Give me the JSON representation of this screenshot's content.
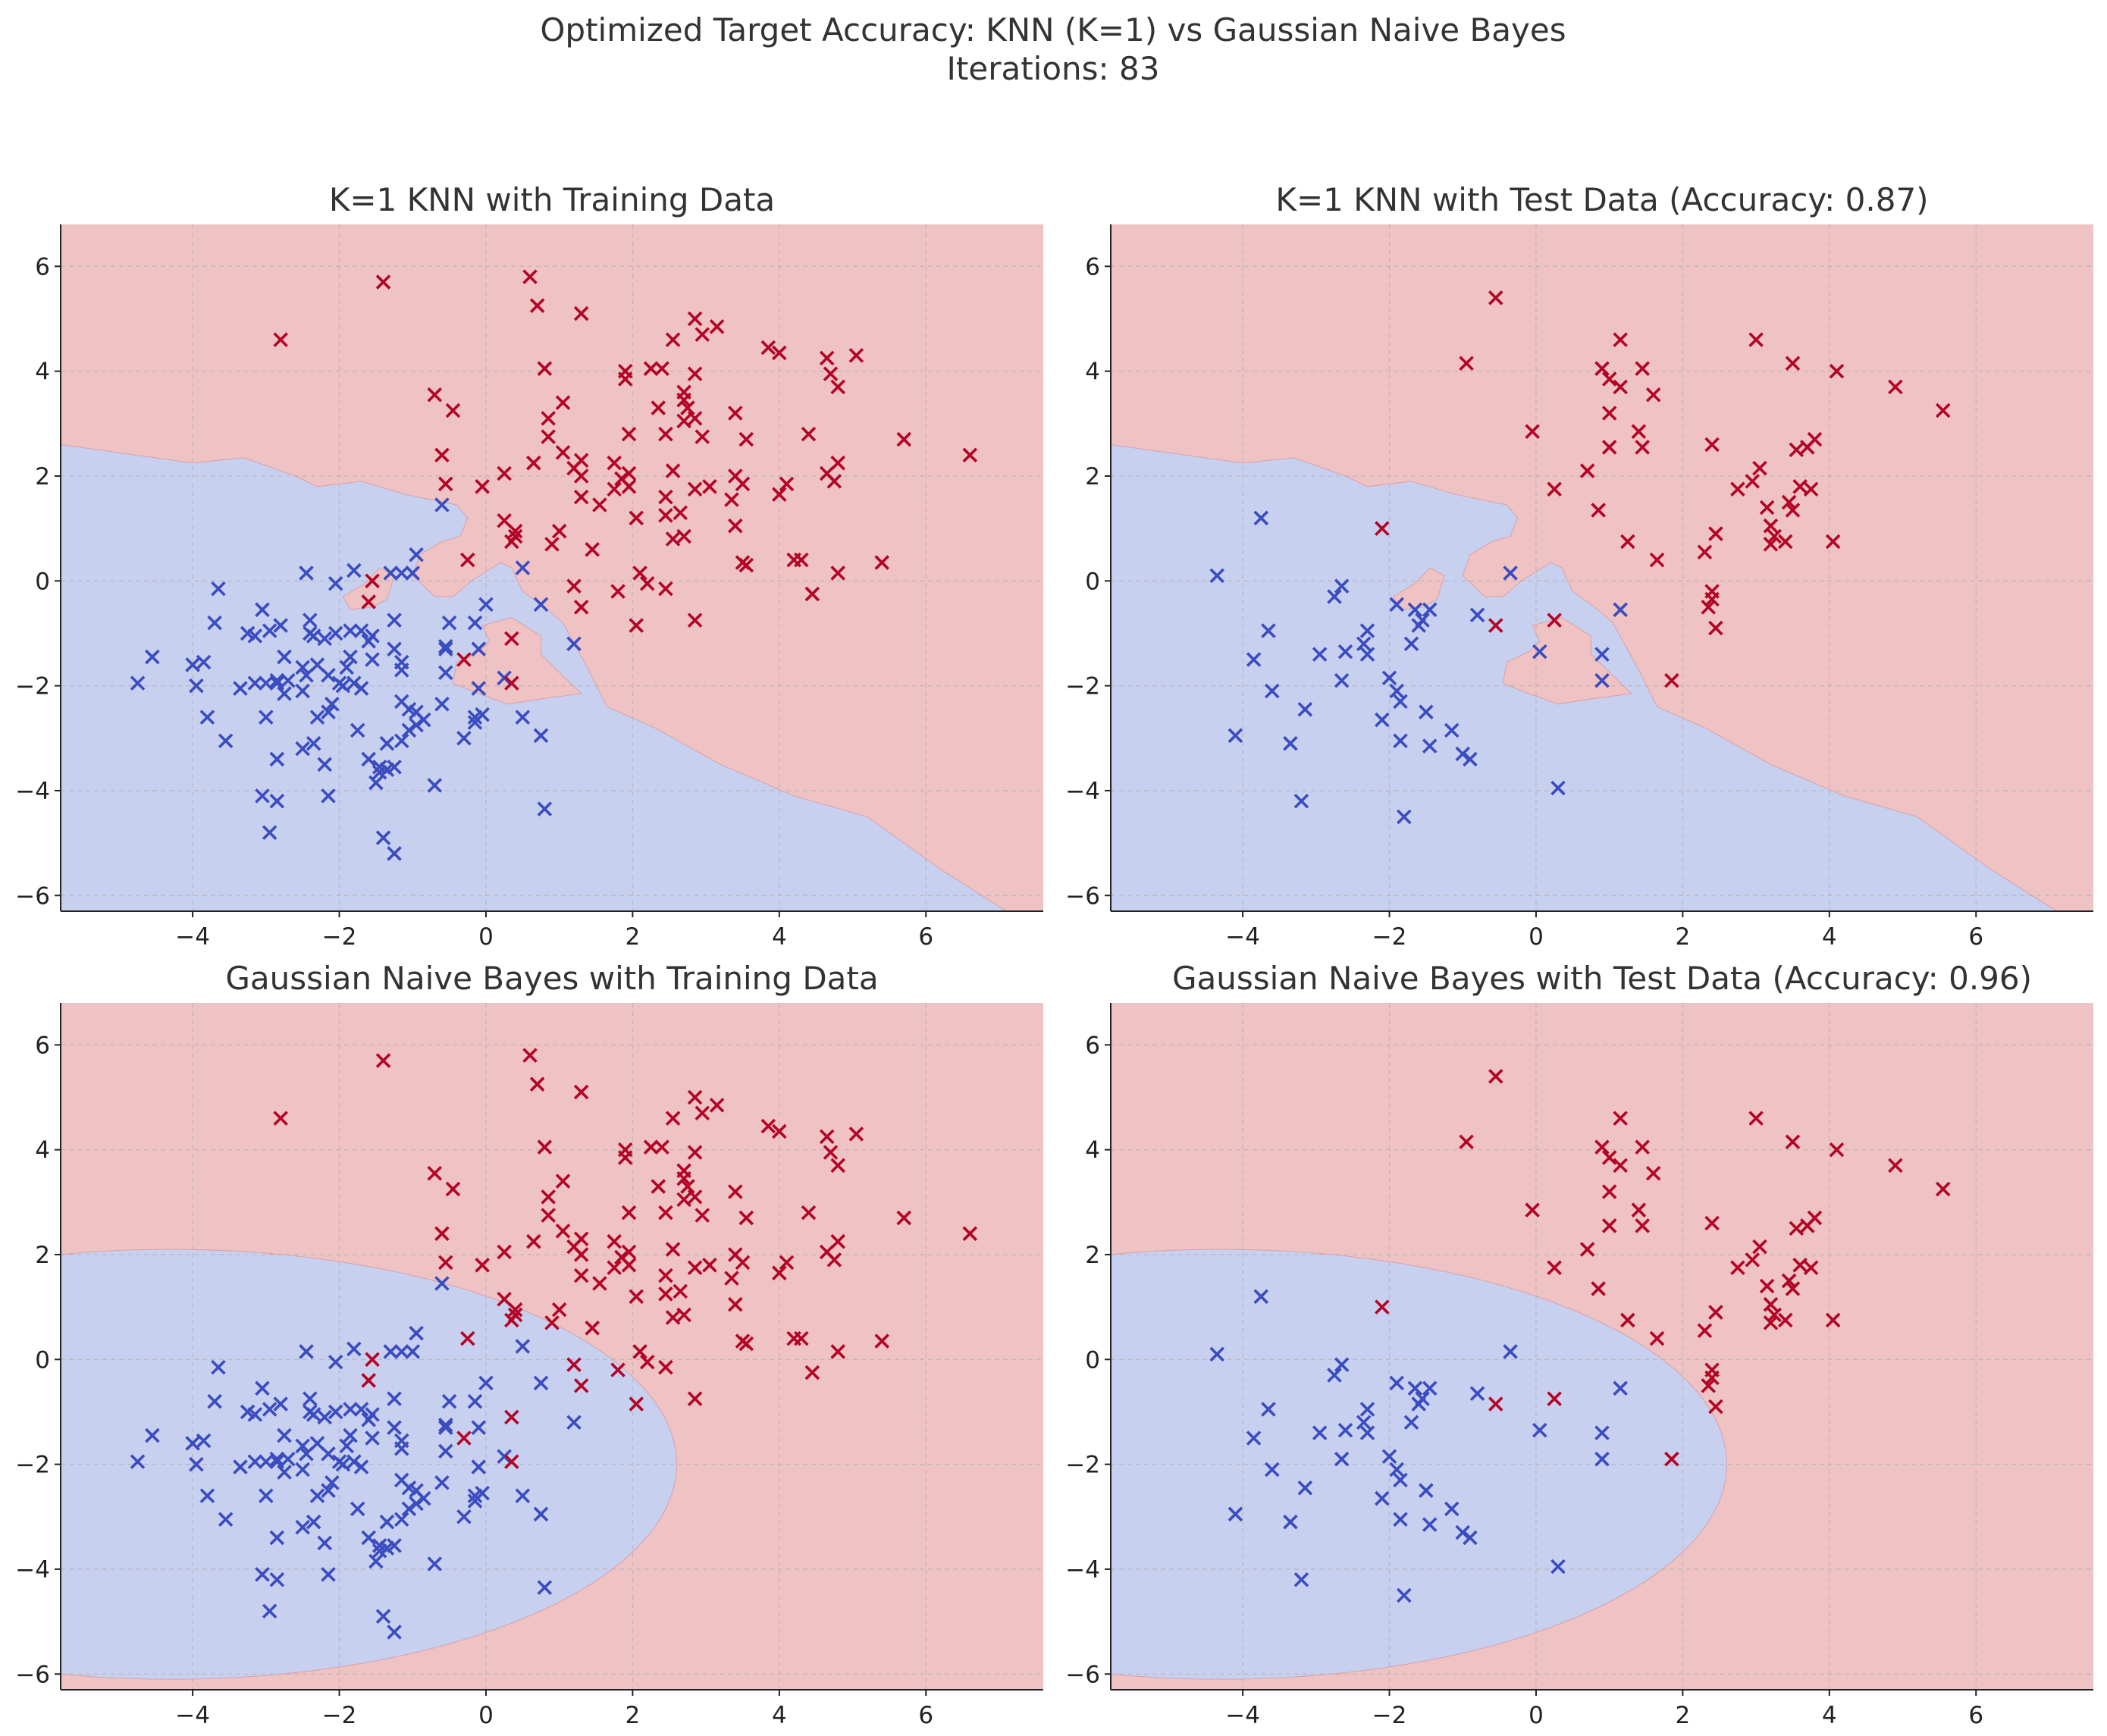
{
  "suptitle": {
    "line1": "Optimized Target Accuracy: KNN (K=1) vs Gaussian Naive Bayes",
    "line2": "Iterations: 83"
  },
  "colors": {
    "class0_region": "#c8d0f0",
    "class1_region": "#efc3c4",
    "class0_marker": "#3a4cc0",
    "class1_marker": "#b40426",
    "grid": "#b0b0b0"
  },
  "chart_data": [
    {
      "type": "scatter",
      "title": "K=1 KNN with Training Data",
      "xlim": [
        -5.8,
        7.6
      ],
      "ylim": [
        -6.3,
        6.8
      ],
      "xticks": [
        -4,
        -2,
        0,
        2,
        4,
        6
      ],
      "yticks": [
        -6,
        -4,
        -2,
        0,
        2,
        4,
        6
      ],
      "grid": true,
      "boundary_type": "knn",
      "dataset": "train"
    },
    {
      "type": "scatter",
      "title": "K=1 KNN with Test Data (Accuracy: 0.87)",
      "xlim": [
        -5.8,
        7.6
      ],
      "ylim": [
        -6.3,
        6.8
      ],
      "xticks": [
        -4,
        -2,
        0,
        2,
        4,
        6
      ],
      "yticks": [
        -6,
        -4,
        -2,
        0,
        2,
        4,
        6
      ],
      "grid": true,
      "boundary_type": "knn",
      "dataset": "test"
    },
    {
      "type": "scatter",
      "title": "Gaussian Naive Bayes with Training Data",
      "xlim": [
        -5.8,
        7.6
      ],
      "ylim": [
        -6.3,
        6.8
      ],
      "xticks": [
        -4,
        -2,
        0,
        2,
        4,
        6
      ],
      "yticks": [
        -6,
        -4,
        -2,
        0,
        2,
        4,
        6
      ],
      "grid": true,
      "boundary_type": "gnb",
      "dataset": "train"
    },
    {
      "type": "scatter",
      "title": "Gaussian Naive Bayes with Test Data (Accuracy: 0.96)",
      "xlim": [
        -5.8,
        7.6
      ],
      "ylim": [
        -6.3,
        6.8
      ],
      "xticks": [
        -4,
        -2,
        0,
        2,
        4,
        6
      ],
      "yticks": [
        -6,
        -4,
        -2,
        0,
        2,
        4,
        6
      ],
      "grid": true,
      "boundary_type": "gnb",
      "dataset": "test"
    }
  ],
  "boundaries": {
    "knn_main": [
      [
        -5.8,
        2.6
      ],
      [
        -4.0,
        2.25
      ],
      [
        -3.3,
        2.35
      ],
      [
        -2.6,
        2.0
      ],
      [
        -2.3,
        1.8
      ],
      [
        -1.7,
        1.9
      ],
      [
        -1.1,
        1.65
      ],
      [
        -0.4,
        1.45
      ],
      [
        -0.25,
        1.2
      ],
      [
        -0.35,
        0.85
      ],
      [
        -0.6,
        0.75
      ],
      [
        -0.9,
        0.5
      ],
      [
        -1.0,
        0.1
      ],
      [
        -0.7,
        -0.3
      ],
      [
        -0.45,
        -0.3
      ],
      [
        -0.2,
        0.0
      ],
      [
        0.2,
        0.35
      ],
      [
        0.35,
        0.25
      ],
      [
        0.5,
        -0.2
      ],
      [
        0.8,
        -0.5
      ],
      [
        1.05,
        -0.8
      ],
      [
        1.4,
        -1.7
      ],
      [
        1.65,
        -2.4
      ],
      [
        2.3,
        -2.8
      ],
      [
        3.2,
        -3.5
      ],
      [
        4.2,
        -4.1
      ],
      [
        5.2,
        -4.5
      ],
      [
        6.2,
        -5.5
      ],
      [
        7.1,
        -6.3
      ]
    ],
    "knn_islands": [
      [
        [
          -1.65,
          -0.05
        ],
        [
          -1.45,
          0.25
        ],
        [
          -1.25,
          0.1
        ],
        [
          -1.35,
          -0.35
        ],
        [
          -1.55,
          -0.5
        ],
        [
          -1.85,
          -0.55
        ],
        [
          -1.95,
          -0.3
        ]
      ],
      [
        [
          -0.05,
          -0.85
        ],
        [
          0.35,
          -0.7
        ],
        [
          0.75,
          -1.05
        ],
        [
          0.75,
          -1.4
        ],
        [
          1.3,
          -2.15
        ],
        [
          0.75,
          -2.25
        ],
        [
          0.3,
          -2.35
        ],
        [
          -0.1,
          -2.15
        ],
        [
          -0.45,
          -1.95
        ],
        [
          -0.4,
          -1.55
        ],
        [
          -0.1,
          -1.35
        ],
        [
          0.05,
          -1.15
        ]
      ]
    ],
    "gnb_ellipse": {
      "cx": -4.3,
      "cy": -2.0,
      "rx": 6.9,
      "ry": 4.1
    }
  },
  "train": {
    "class1": [
      [
        -2.8,
        4.6
      ],
      [
        -1.4,
        5.7
      ],
      [
        0.6,
        5.8
      ],
      [
        0.7,
        5.25
      ],
      [
        1.3,
        5.1
      ],
      [
        -0.7,
        3.55
      ],
      [
        -0.45,
        3.25
      ],
      [
        0.8,
        4.05
      ],
      [
        1.9,
        4.0
      ],
      [
        1.9,
        3.85
      ],
      [
        2.25,
        4.05
      ],
      [
        2.4,
        4.05
      ],
      [
        2.55,
        4.6
      ],
      [
        2.85,
        5.0
      ],
      [
        2.95,
        4.7
      ],
      [
        3.15,
        4.85
      ],
      [
        2.7,
        3.6
      ],
      [
        2.7,
        3.45
      ],
      [
        2.85,
        3.95
      ],
      [
        1.05,
        3.4
      ],
      [
        0.85,
        3.1
      ],
      [
        0.85,
        2.75
      ],
      [
        1.05,
        2.45
      ],
      [
        1.3,
        2.3
      ],
      [
        1.2,
        2.15
      ],
      [
        1.3,
        2.0
      ],
      [
        0.65,
        2.25
      ],
      [
        -0.6,
        2.4
      ],
      [
        -0.55,
        1.85
      ],
      [
        -0.05,
        1.8
      ],
      [
        0.25,
        2.05
      ],
      [
        1.75,
        2.25
      ],
      [
        1.95,
        2.05
      ],
      [
        1.85,
        1.95
      ],
      [
        1.75,
        1.75
      ],
      [
        1.95,
        1.8
      ],
      [
        1.55,
        1.45
      ],
      [
        1.3,
        1.6
      ],
      [
        1.95,
        2.8
      ],
      [
        2.35,
        3.3
      ],
      [
        2.55,
        2.1
      ],
      [
        2.45,
        2.8
      ],
      [
        2.75,
        3.3
      ],
      [
        2.7,
        3.05
      ],
      [
        2.85,
        3.1
      ],
      [
        2.95,
        2.75
      ],
      [
        2.45,
        1.6
      ],
      [
        2.45,
        1.25
      ],
      [
        2.65,
        1.3
      ],
      [
        2.85,
        1.75
      ],
      [
        3.05,
        1.8
      ],
      [
        2.55,
        0.8
      ],
      [
        2.7,
        0.85
      ],
      [
        3.35,
        1.55
      ],
      [
        3.4,
        1.05
      ],
      [
        3.5,
        1.85
      ],
      [
        3.4,
        2.0
      ],
      [
        3.55,
        2.7
      ],
      [
        3.4,
        3.2
      ],
      [
        3.85,
        4.45
      ],
      [
        4.0,
        4.35
      ],
      [
        4.1,
        1.85
      ],
      [
        4.0,
        1.65
      ],
      [
        3.5,
        0.35
      ],
      [
        3.55,
        0.3
      ],
      [
        4.2,
        0.4
      ],
      [
        4.3,
        0.4
      ],
      [
        4.4,
        2.8
      ],
      [
        4.45,
        -0.25
      ],
      [
        4.65,
        4.25
      ],
      [
        4.7,
        3.95
      ],
      [
        4.8,
        3.7
      ],
      [
        4.8,
        2.25
      ],
      [
        4.65,
        2.05
      ],
      [
        4.75,
        1.9
      ],
      [
        4.8,
        0.15
      ],
      [
        5.05,
        4.3
      ],
      [
        5.4,
        0.35
      ],
      [
        5.7,
        2.7
      ],
      [
        6.6,
        2.4
      ],
      [
        2.05,
        1.2
      ],
      [
        1.0,
        0.95
      ],
      [
        0.9,
        0.7
      ],
      [
        1.45,
        0.6
      ],
      [
        1.2,
        -0.1
      ],
      [
        1.3,
        -0.5
      ],
      [
        1.8,
        -0.2
      ],
      [
        2.05,
        -0.85
      ],
      [
        2.1,
        0.15
      ],
      [
        2.2,
        -0.05
      ],
      [
        2.45,
        -0.15
      ],
      [
        2.85,
        -0.75
      ],
      [
        0.25,
        1.15
      ],
      [
        0.35,
        0.75
      ],
      [
        0.4,
        0.95
      ],
      [
        0.4,
        0.85
      ],
      [
        -0.25,
        0.4
      ],
      [
        -1.55,
        0.0
      ],
      [
        -1.6,
        -0.4
      ],
      [
        -0.3,
        -1.5
      ],
      [
        0.35,
        -1.1
      ],
      [
        0.35,
        -1.95
      ]
    ],
    "class0": [
      [
        -4.75,
        -1.95
      ],
      [
        -4.55,
        -1.45
      ],
      [
        -4.0,
        -1.6
      ],
      [
        -3.85,
        -1.55
      ],
      [
        -3.95,
        -2.0
      ],
      [
        -3.8,
        -2.6
      ],
      [
        -3.7,
        -0.8
      ],
      [
        -3.65,
        -0.15
      ],
      [
        -3.55,
        -3.05
      ],
      [
        -3.35,
        -2.05
      ],
      [
        -3.25,
        -1.0
      ],
      [
        -3.15,
        -1.05
      ],
      [
        -3.15,
        -1.95
      ],
      [
        -3.05,
        -0.55
      ],
      [
        -3.0,
        -1.95
      ],
      [
        -2.95,
        -0.95
      ],
      [
        -3.0,
        -2.6
      ],
      [
        -2.85,
        -1.95
      ],
      [
        -2.85,
        -1.9
      ],
      [
        -2.75,
        -2.15
      ],
      [
        -2.75,
        -1.45
      ],
      [
        -2.8,
        -0.85
      ],
      [
        -2.7,
        -1.9
      ],
      [
        -2.5,
        -1.65
      ],
      [
        -2.45,
        -1.8
      ],
      [
        -2.5,
        -2.1
      ],
      [
        -2.5,
        -3.2
      ],
      [
        -2.4,
        -0.75
      ],
      [
        -2.4,
        -1.0
      ],
      [
        -2.45,
        0.15
      ],
      [
        -2.35,
        -1.05
      ],
      [
        -2.3,
        -1.6
      ],
      [
        -2.3,
        -2.6
      ],
      [
        -2.2,
        -1.1
      ],
      [
        -2.15,
        -1.8
      ],
      [
        -2.1,
        -2.35
      ],
      [
        -2.05,
        -0.05
      ],
      [
        -2.05,
        -1.0
      ],
      [
        -2.0,
        -1.95
      ],
      [
        -2.15,
        -2.5
      ],
      [
        -1.9,
        -1.65
      ],
      [
        -1.95,
        -2.0
      ],
      [
        -1.8,
        -1.95
      ],
      [
        -1.8,
        0.2
      ],
      [
        -1.7,
        -0.95
      ],
      [
        -1.7,
        -2.05
      ],
      [
        -1.75,
        -2.85
      ],
      [
        -1.55,
        -1.05
      ],
      [
        -1.55,
        -1.5
      ],
      [
        -1.6,
        -3.4
      ],
      [
        -1.5,
        -3.85
      ],
      [
        -1.45,
        -3.55
      ],
      [
        -1.35,
        -3.1
      ],
      [
        -1.35,
        -3.6
      ],
      [
        -1.4,
        -4.9
      ],
      [
        -1.25,
        -5.2
      ],
      [
        -1.25,
        -3.55
      ],
      [
        -1.25,
        -1.3
      ],
      [
        -1.25,
        -0.75
      ],
      [
        -1.15,
        -1.55
      ],
      [
        -1.15,
        -1.7
      ],
      [
        -1.15,
        -3.05
      ],
      [
        -1.15,
        -2.3
      ],
      [
        -1.05,
        -2.85
      ],
      [
        -1.05,
        -2.45
      ],
      [
        -0.95,
        -2.75
      ],
      [
        -0.95,
        -2.5
      ],
      [
        -0.85,
        -2.65
      ],
      [
        -1.3,
        0.15
      ],
      [
        -1.15,
        0.15
      ],
      [
        -1.0,
        0.15
      ],
      [
        -0.95,
        0.5
      ],
      [
        -0.6,
        1.45
      ],
      [
        -0.5,
        -0.8
      ],
      [
        -0.55,
        -1.25
      ],
      [
        -0.55,
        -1.3
      ],
      [
        -0.55,
        -1.75
      ],
      [
        -0.6,
        -2.35
      ],
      [
        -0.3,
        -3.0
      ],
      [
        -0.15,
        -2.6
      ],
      [
        -0.1,
        -1.3
      ],
      [
        -0.15,
        -0.8
      ],
      [
        0.0,
        -0.45
      ],
      [
        -0.1,
        -2.05
      ],
      [
        -0.15,
        -2.7
      ],
      [
        -0.05,
        -2.55
      ],
      [
        0.25,
        -1.85
      ],
      [
        0.5,
        -2.6
      ],
      [
        0.5,
        0.25
      ],
      [
        0.75,
        -0.45
      ],
      [
        0.75,
        -2.95
      ],
      [
        0.8,
        -4.35
      ],
      [
        1.2,
        -1.2
      ],
      [
        -2.2,
        -3.5
      ],
      [
        -2.85,
        -3.4
      ],
      [
        -2.85,
        -4.2
      ],
      [
        -2.35,
        -3.1
      ],
      [
        -2.15,
        -4.1
      ],
      [
        -3.05,
        -4.1
      ],
      [
        -2.95,
        -4.8
      ],
      [
        -0.7,
        -3.9
      ],
      [
        -1.85,
        -1.45
      ],
      [
        -1.6,
        -1.15
      ],
      [
        -1.45,
        -3.65
      ],
      [
        -1.85,
        -0.95
      ]
    ]
  },
  "test": {
    "class1": [
      [
        -0.55,
        5.4
      ],
      [
        -0.95,
        4.15
      ],
      [
        1.15,
        4.6
      ],
      [
        3.0,
        4.6
      ],
      [
        3.5,
        4.15
      ],
      [
        4.1,
        4.0
      ],
      [
        4.9,
        3.7
      ],
      [
        5.55,
        3.25
      ],
      [
        0.9,
        4.05
      ],
      [
        1.0,
        3.85
      ],
      [
        1.15,
        3.7
      ],
      [
        1.45,
        4.05
      ],
      [
        1.6,
        3.55
      ],
      [
        -0.05,
        2.85
      ],
      [
        1.0,
        3.2
      ],
      [
        0.25,
        1.75
      ],
      [
        0.7,
        2.1
      ],
      [
        1.0,
        2.55
      ],
      [
        1.4,
        2.85
      ],
      [
        1.45,
        2.55
      ],
      [
        0.85,
        1.35
      ],
      [
        1.25,
        0.75
      ],
      [
        1.65,
        0.4
      ],
      [
        2.4,
        2.6
      ],
      [
        2.45,
        0.9
      ],
      [
        2.75,
        1.75
      ],
      [
        2.95,
        1.9
      ],
      [
        3.05,
        2.15
      ],
      [
        3.15,
        1.4
      ],
      [
        3.2,
        1.05
      ],
      [
        3.25,
        0.85
      ],
      [
        3.2,
        0.7
      ],
      [
        3.4,
        0.75
      ],
      [
        3.45,
        1.5
      ],
      [
        3.5,
        1.35
      ],
      [
        3.55,
        2.5
      ],
      [
        3.6,
        1.8
      ],
      [
        3.7,
        2.55
      ],
      [
        3.75,
        1.75
      ],
      [
        3.8,
        2.7
      ],
      [
        4.05,
        0.75
      ],
      [
        2.3,
        0.55
      ],
      [
        2.4,
        -0.2
      ],
      [
        2.4,
        -0.35
      ],
      [
        2.35,
        -0.5
      ],
      [
        2.45,
        -0.9
      ],
      [
        1.85,
        -1.9
      ],
      [
        -2.1,
        1.0
      ],
      [
        -0.55,
        -0.85
      ],
      [
        0.25,
        -0.75
      ]
    ],
    "class0": [
      [
        -4.35,
        0.1
      ],
      [
        -3.75,
        1.2
      ],
      [
        -3.85,
        -1.5
      ],
      [
        -3.6,
        -2.1
      ],
      [
        -3.65,
        -0.95
      ],
      [
        -4.1,
        -2.95
      ],
      [
        -3.35,
        -3.1
      ],
      [
        -3.15,
        -2.45
      ],
      [
        -3.2,
        -4.2
      ],
      [
        -2.95,
        -1.4
      ],
      [
        -2.75,
        -0.3
      ],
      [
        -2.65,
        -0.1
      ],
      [
        -2.6,
        -1.35
      ],
      [
        -2.65,
        -1.9
      ],
      [
        -2.35,
        -1.2
      ],
      [
        -2.3,
        -0.95
      ],
      [
        -2.3,
        -1.4
      ],
      [
        -2.1,
        -2.65
      ],
      [
        -2.0,
        -1.85
      ],
      [
        -1.9,
        -2.1
      ],
      [
        -1.9,
        -0.45
      ],
      [
        -1.85,
        -3.05
      ],
      [
        -1.8,
        -4.5
      ],
      [
        -1.7,
        -1.2
      ],
      [
        -1.65,
        -0.55
      ],
      [
        -1.6,
        -0.85
      ],
      [
        -1.55,
        -0.75
      ],
      [
        -1.45,
        -0.55
      ],
      [
        -1.5,
        -2.5
      ],
      [
        -1.45,
        -3.15
      ],
      [
        -1.15,
        -2.85
      ],
      [
        -1.0,
        -3.3
      ],
      [
        -0.9,
        -3.4
      ],
      [
        -0.8,
        -0.65
      ],
      [
        -0.35,
        0.15
      ],
      [
        0.05,
        -1.35
      ],
      [
        0.3,
        -3.95
      ],
      [
        0.9,
        -1.4
      ],
      [
        0.9,
        -1.9
      ],
      [
        1.15,
        -0.55
      ],
      [
        -1.85,
        -2.3
      ]
    ]
  }
}
